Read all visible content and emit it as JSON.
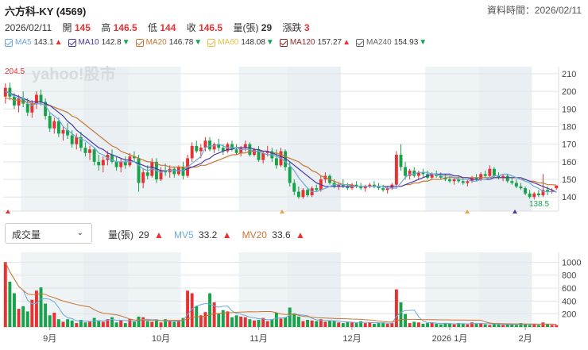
{
  "header": {
    "title": "六方科-KY (4569)",
    "data_time": "資料時間：2026/02/11"
  },
  "quote": {
    "date": "2026/02/11",
    "open_label": "開",
    "open": "145",
    "high_label": "高",
    "high": "146.5",
    "low_label": "低",
    "low": "144",
    "close_label": "收",
    "close": "146.5",
    "volume_label": "量(張)",
    "volume": "29",
    "change_label": "漲跌",
    "change": "3"
  },
  "ma_legend": [
    {
      "label": "MA5",
      "value": "143.1",
      "dir": "▲",
      "color": "#6fa8dc"
    },
    {
      "label": "MA10",
      "value": "142.8",
      "dir": "▼",
      "color": "#4b3aa8"
    },
    {
      "label": "MA20",
      "value": "146.78",
      "dir": "▼",
      "color": "#c87533"
    },
    {
      "label": "MA60",
      "value": "148.08",
      "dir": "▼",
      "color": "#e8c04a"
    },
    {
      "label": "MA120",
      "value": "157.27",
      "dir": "▲",
      "color": "#8b2a2a"
    },
    {
      "label": "MA240",
      "value": "154.93",
      "dir": "▼",
      "color": "#666666"
    }
  ],
  "volume_panel": {
    "select_value": "成交量",
    "vol_label": "量(張)",
    "vol_value": "29",
    "vol_dir": "▲",
    "mv5_label": "MV5",
    "mv5_value": "33.2",
    "mv5_dir": "▲",
    "mv20_label": "MV20",
    "mv20_value": "33.6",
    "mv20_dir": "▲"
  },
  "watermark": "yahoo!股市",
  "colors": {
    "up": "#e63232",
    "down": "#16a34a",
    "ma5": "#6fa8dc",
    "ma10": "#4b3aa8",
    "ma20": "#c87533",
    "month_band": "#eef3f6"
  },
  "chart_data": {
    "type": "candlestick",
    "price_axis": {
      "ticks": [
        210,
        200,
        190,
        180,
        170,
        160,
        150,
        140
      ],
      "ylim": [
        132,
        214
      ]
    },
    "volume_axis": {
      "ticks": [
        1000,
        800,
        600,
        400,
        200
      ],
      "ylim": [
        0,
        1150
      ]
    },
    "x_labels": [
      "9月",
      "10月",
      "11月",
      "12月",
      "2026 1月",
      "2月"
    ],
    "annotations": {
      "max_label": "204.5",
      "min_label": "138.5"
    },
    "candles": [
      {
        "o": 197,
        "h": 204.5,
        "l": 193,
        "c": 202
      },
      {
        "o": 202,
        "h": 205,
        "l": 195,
        "c": 197
      },
      {
        "o": 197,
        "h": 199,
        "l": 190,
        "c": 192
      },
      {
        "o": 192,
        "h": 198,
        "l": 188,
        "c": 196
      },
      {
        "o": 196,
        "h": 200,
        "l": 191,
        "c": 193
      },
      {
        "o": 193,
        "h": 196,
        "l": 186,
        "c": 188
      },
      {
        "o": 188,
        "h": 195,
        "l": 185,
        "c": 193
      },
      {
        "o": 193,
        "h": 200,
        "l": 190,
        "c": 198
      },
      {
        "o": 198,
        "h": 201,
        "l": 192,
        "c": 194
      },
      {
        "o": 194,
        "h": 196,
        "l": 184,
        "c": 186
      },
      {
        "o": 186,
        "h": 188,
        "l": 177,
        "c": 179
      },
      {
        "o": 179,
        "h": 185,
        "l": 176,
        "c": 183
      },
      {
        "o": 183,
        "h": 185,
        "l": 174,
        "c": 176
      },
      {
        "o": 176,
        "h": 180,
        "l": 172,
        "c": 178
      },
      {
        "o": 178,
        "h": 182,
        "l": 173,
        "c": 175
      },
      {
        "o": 175,
        "h": 178,
        "l": 168,
        "c": 170
      },
      {
        "o": 170,
        "h": 176,
        "l": 167,
        "c": 174
      },
      {
        "o": 174,
        "h": 177,
        "l": 166,
        "c": 168
      },
      {
        "o": 168,
        "h": 171,
        "l": 163,
        "c": 165
      },
      {
        "o": 165,
        "h": 169,
        "l": 161,
        "c": 167
      },
      {
        "o": 167,
        "h": 168,
        "l": 158,
        "c": 160
      },
      {
        "o": 160,
        "h": 164,
        "l": 155,
        "c": 158
      },
      {
        "o": 158,
        "h": 163,
        "l": 154,
        "c": 161
      },
      {
        "o": 161,
        "h": 166,
        "l": 158,
        "c": 164
      },
      {
        "o": 164,
        "h": 167,
        "l": 159,
        "c": 160
      },
      {
        "o": 160,
        "h": 163,
        "l": 155,
        "c": 157
      },
      {
        "o": 157,
        "h": 162,
        "l": 154,
        "c": 160
      },
      {
        "o": 160,
        "h": 163,
        "l": 156,
        "c": 158
      },
      {
        "o": 158,
        "h": 165,
        "l": 157,
        "c": 163
      },
      {
        "o": 163,
        "h": 166,
        "l": 160,
        "c": 162
      },
      {
        "o": 162,
        "h": 164,
        "l": 143,
        "c": 148
      },
      {
        "o": 148,
        "h": 156,
        "l": 145,
        "c": 154
      },
      {
        "o": 154,
        "h": 158,
        "l": 150,
        "c": 152
      },
      {
        "o": 152,
        "h": 162,
        "l": 151,
        "c": 160
      },
      {
        "o": 160,
        "h": 162,
        "l": 148,
        "c": 150
      },
      {
        "o": 150,
        "h": 157,
        "l": 149,
        "c": 155
      },
      {
        "o": 155,
        "h": 159,
        "l": 152,
        "c": 154
      },
      {
        "o": 154,
        "h": 158,
        "l": 151,
        "c": 156
      },
      {
        "o": 156,
        "h": 157,
        "l": 151,
        "c": 153
      },
      {
        "o": 153,
        "h": 158,
        "l": 152,
        "c": 157
      },
      {
        "o": 157,
        "h": 160,
        "l": 150,
        "c": 152
      },
      {
        "o": 152,
        "h": 164,
        "l": 151,
        "c": 162
      },
      {
        "o": 162,
        "h": 171,
        "l": 160,
        "c": 169
      },
      {
        "o": 169,
        "h": 172,
        "l": 165,
        "c": 166
      },
      {
        "o": 166,
        "h": 170,
        "l": 162,
        "c": 168
      },
      {
        "o": 168,
        "h": 174,
        "l": 166,
        "c": 172
      },
      {
        "o": 172,
        "h": 174,
        "l": 166,
        "c": 167
      },
      {
        "o": 167,
        "h": 171,
        "l": 165,
        "c": 170
      },
      {
        "o": 170,
        "h": 173,
        "l": 166,
        "c": 168
      },
      {
        "o": 168,
        "h": 170,
        "l": 164,
        "c": 166
      },
      {
        "o": 166,
        "h": 171,
        "l": 165,
        "c": 170
      },
      {
        "o": 170,
        "h": 172,
        "l": 166,
        "c": 167
      },
      {
        "o": 167,
        "h": 170,
        "l": 164,
        "c": 165
      },
      {
        "o": 165,
        "h": 169,
        "l": 163,
        "c": 168
      },
      {
        "o": 168,
        "h": 172,
        "l": 166,
        "c": 170
      },
      {
        "o": 170,
        "h": 171,
        "l": 163,
        "c": 164
      },
      {
        "o": 164,
        "h": 168,
        "l": 163,
        "c": 167
      },
      {
        "o": 167,
        "h": 169,
        "l": 160,
        "c": 161
      },
      {
        "o": 161,
        "h": 166,
        "l": 159,
        "c": 165
      },
      {
        "o": 165,
        "h": 169,
        "l": 163,
        "c": 166
      },
      {
        "o": 166,
        "h": 168,
        "l": 160,
        "c": 162
      },
      {
        "o": 162,
        "h": 167,
        "l": 156,
        "c": 158
      },
      {
        "o": 158,
        "h": 168,
        "l": 157,
        "c": 166
      },
      {
        "o": 166,
        "h": 167,
        "l": 155,
        "c": 157
      },
      {
        "o": 157,
        "h": 160,
        "l": 146,
        "c": 148
      },
      {
        "o": 148,
        "h": 150,
        "l": 141,
        "c": 143
      },
      {
        "o": 143,
        "h": 146,
        "l": 139,
        "c": 140
      },
      {
        "o": 140,
        "h": 145,
        "l": 139,
        "c": 144
      },
      {
        "o": 144,
        "h": 145,
        "l": 140,
        "c": 141
      },
      {
        "o": 141,
        "h": 146,
        "l": 140,
        "c": 145
      },
      {
        "o": 145,
        "h": 147,
        "l": 143,
        "c": 144
      },
      {
        "o": 144,
        "h": 152,
        "l": 143,
        "c": 150
      },
      {
        "o": 150,
        "h": 154,
        "l": 148,
        "c": 152
      },
      {
        "o": 152,
        "h": 153,
        "l": 147,
        "c": 148
      },
      {
        "o": 148,
        "h": 150,
        "l": 145,
        "c": 146
      },
      {
        "o": 146,
        "h": 148,
        "l": 144,
        "c": 147
      },
      {
        "o": 147,
        "h": 150,
        "l": 145,
        "c": 146
      },
      {
        "o": 146,
        "h": 148,
        "l": 144,
        "c": 145
      },
      {
        "o": 145,
        "h": 148,
        "l": 144,
        "c": 147
      },
      {
        "o": 147,
        "h": 149,
        "l": 145,
        "c": 146
      },
      {
        "o": 146,
        "h": 148,
        "l": 144,
        "c": 145
      },
      {
        "o": 145,
        "h": 147,
        "l": 143,
        "c": 146
      },
      {
        "o": 146,
        "h": 148,
        "l": 145,
        "c": 147
      },
      {
        "o": 147,
        "h": 149,
        "l": 145,
        "c": 146
      },
      {
        "o": 146,
        "h": 148,
        "l": 144,
        "c": 145
      },
      {
        "o": 145,
        "h": 147,
        "l": 143,
        "c": 144
      },
      {
        "o": 144,
        "h": 146,
        "l": 142,
        "c": 145
      },
      {
        "o": 145,
        "h": 148,
        "l": 144,
        "c": 147
      },
      {
        "o": 147,
        "h": 166,
        "l": 146,
        "c": 164
      },
      {
        "o": 164,
        "h": 170,
        "l": 155,
        "c": 157
      },
      {
        "o": 157,
        "h": 160,
        "l": 150,
        "c": 152
      },
      {
        "o": 152,
        "h": 156,
        "l": 150,
        "c": 155
      },
      {
        "o": 155,
        "h": 157,
        "l": 151,
        "c": 152
      },
      {
        "o": 152,
        "h": 155,
        "l": 150,
        "c": 154
      },
      {
        "o": 154,
        "h": 156,
        "l": 151,
        "c": 153
      },
      {
        "o": 153,
        "h": 155,
        "l": 150,
        "c": 151
      },
      {
        "o": 151,
        "h": 154,
        "l": 150,
        "c": 153
      },
      {
        "o": 153,
        "h": 155,
        "l": 151,
        "c": 152
      },
      {
        "o": 152,
        "h": 154,
        "l": 150,
        "c": 151
      },
      {
        "o": 151,
        "h": 153,
        "l": 149,
        "c": 150
      },
      {
        "o": 150,
        "h": 152,
        "l": 148,
        "c": 149
      },
      {
        "o": 149,
        "h": 151,
        "l": 147,
        "c": 150
      },
      {
        "o": 150,
        "h": 152,
        "l": 148,
        "c": 149
      },
      {
        "o": 149,
        "h": 151,
        "l": 147,
        "c": 148
      },
      {
        "o": 148,
        "h": 150,
        "l": 146,
        "c": 149
      },
      {
        "o": 149,
        "h": 152,
        "l": 148,
        "c": 151
      },
      {
        "o": 151,
        "h": 153,
        "l": 149,
        "c": 150
      },
      {
        "o": 150,
        "h": 154,
        "l": 149,
        "c": 153
      },
      {
        "o": 153,
        "h": 155,
        "l": 151,
        "c": 152
      },
      {
        "o": 152,
        "h": 158,
        "l": 151,
        "c": 156
      },
      {
        "o": 156,
        "h": 157,
        "l": 151,
        "c": 152
      },
      {
        "o": 152,
        "h": 154,
        "l": 150,
        "c": 151
      },
      {
        "o": 151,
        "h": 153,
        "l": 149,
        "c": 152
      },
      {
        "o": 152,
        "h": 153,
        "l": 148,
        "c": 149
      },
      {
        "o": 149,
        "h": 151,
        "l": 147,
        "c": 148
      },
      {
        "o": 148,
        "h": 150,
        "l": 145,
        "c": 146
      },
      {
        "o": 146,
        "h": 148,
        "l": 144,
        "c": 145
      },
      {
        "o": 145,
        "h": 146,
        "l": 141,
        "c": 142
      },
      {
        "o": 142,
        "h": 144,
        "l": 139,
        "c": 140
      },
      {
        "o": 140,
        "h": 143,
        "l": 138.5,
        "c": 142
      },
      {
        "o": 142,
        "h": 144,
        "l": 140,
        "c": 141
      },
      {
        "o": 141,
        "h": 153,
        "l": 140,
        "c": 144
      },
      {
        "o": 144,
        "h": 146,
        "l": 141,
        "c": 143
      },
      {
        "o": 143,
        "h": 145,
        "l": 142,
        "c": 143.5
      },
      {
        "o": 145,
        "h": 146.5,
        "l": 144,
        "c": 146.5
      }
    ],
    "volume": [
      1000,
      700,
      520,
      280,
      320,
      240,
      420,
      560,
      610,
      360,
      180,
      220,
      120,
      80,
      120,
      100,
      60,
      110,
      70,
      90,
      140,
      90,
      80,
      120,
      150,
      70,
      100,
      60,
      120,
      80,
      160,
      150,
      90,
      80,
      100,
      70,
      120,
      90,
      80,
      90,
      140,
      560,
      520,
      320,
      180,
      230,
      520,
      380,
      210,
      260,
      240,
      150,
      180,
      160,
      150,
      120,
      100,
      110,
      140,
      90,
      120,
      220,
      130,
      150,
      300,
      210,
      160,
      90,
      110,
      100,
      90,
      120,
      80,
      100,
      90,
      70,
      60,
      80,
      70,
      60,
      90,
      60,
      70,
      50,
      60,
      70,
      50,
      60,
      580,
      380,
      200,
      60,
      80,
      70,
      50,
      60,
      70,
      50,
      40,
      60,
      50,
      40,
      60,
      50,
      40,
      70,
      50,
      60,
      40,
      30,
      50,
      40,
      30,
      50,
      40,
      30,
      60,
      40,
      30,
      50,
      30,
      70,
      40,
      30,
      29
    ],
    "ma5": [
      200,
      199,
      197,
      196,
      196,
      193,
      192,
      193,
      193,
      192,
      188,
      186,
      184,
      180,
      178,
      176,
      174,
      173,
      172,
      170,
      168,
      165,
      164,
      162,
      161,
      160,
      160,
      160,
      160,
      160,
      158,
      156,
      155,
      156,
      155,
      154,
      155,
      155,
      155,
      155,
      155,
      157,
      159,
      161,
      163,
      168,
      169,
      169,
      170,
      169,
      168,
      168,
      168,
      167,
      167,
      167,
      166,
      166,
      165,
      164,
      164,
      163,
      162,
      160,
      158,
      155,
      151,
      148,
      145,
      143,
      143,
      144,
      145,
      146,
      147,
      147,
      147,
      147,
      146,
      146,
      146,
      146,
      146,
      146,
      146,
      146,
      145,
      145,
      145,
      148,
      151,
      153,
      153,
      154,
      154,
      154,
      153,
      153,
      152,
      152,
      152,
      151,
      150,
      150,
      150,
      149,
      149,
      150,
      150,
      151,
      152,
      152,
      153,
      153,
      152,
      151,
      150,
      149,
      148,
      146,
      145,
      143,
      143,
      143,
      143
    ],
    "ma10": [
      200,
      199,
      198,
      197,
      196,
      195,
      194,
      194,
      194,
      193,
      192,
      190,
      188,
      186,
      183,
      181,
      178,
      176,
      174,
      172,
      170,
      168,
      167,
      165,
      164,
      163,
      162,
      161,
      161,
      160,
      159,
      158,
      157,
      157,
      156,
      155,
      155,
      155,
      155,
      155,
      155,
      156,
      157,
      158,
      159,
      161,
      162,
      164,
      165,
      166,
      167,
      167,
      168,
      168,
      168,
      168,
      167,
      167,
      166,
      166,
      165,
      164,
      163,
      162,
      160,
      158,
      156,
      154,
      152,
      150,
      148,
      147,
      146,
      146,
      146,
      146,
      146,
      146,
      146,
      146,
      146,
      146,
      146,
      146,
      146,
      146,
      146,
      146,
      146,
      146,
      147,
      148,
      149,
      150,
      151,
      152,
      153,
      153,
      153,
      153,
      153,
      152,
      152,
      151,
      151,
      150,
      150,
      150,
      150,
      150,
      151,
      151,
      151,
      151,
      151,
      151,
      151,
      150,
      149,
      148,
      147,
      146,
      145,
      144,
      142.8
    ],
    "ma20": [
      196,
      196,
      195,
      195,
      194,
      194,
      193,
      193,
      193,
      192,
      192,
      191,
      190,
      189,
      188,
      186,
      185,
      183,
      181,
      179,
      177,
      175,
      173,
      171,
      169,
      168,
      166,
      165,
      164,
      163,
      162,
      161,
      160,
      160,
      159,
      158,
      158,
      157,
      157,
      157,
      157,
      157,
      157,
      157,
      158,
      158,
      159,
      160,
      161,
      162,
      163,
      164,
      164,
      165,
      165,
      166,
      166,
      166,
      166,
      166,
      165,
      165,
      164,
      163,
      162,
      161,
      160,
      158,
      157,
      155,
      154,
      152,
      151,
      150,
      149,
      148,
      147,
      147,
      147,
      146,
      146,
      146,
      146,
      146,
      146,
      146,
      146,
      146,
      146,
      146,
      147,
      147,
      148,
      148,
      149,
      149,
      150,
      150,
      150,
      151,
      151,
      151,
      151,
      151,
      151,
      151,
      151,
      151,
      151,
      151,
      151,
      151,
      151,
      151,
      151,
      151,
      150,
      150,
      149,
      149,
      148,
      148,
      147,
      147,
      146.78
    ]
  }
}
